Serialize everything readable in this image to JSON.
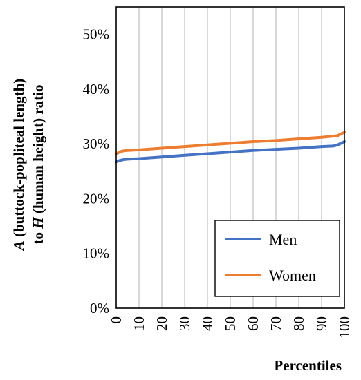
{
  "chart_data": {
    "type": "line",
    "title": "",
    "xlabel": "Percentiles",
    "ylabel_parts": [
      {
        "text": "A",
        "italic": true
      },
      {
        "text": " (buttock-popliteal length)",
        "italic": false
      },
      {
        "text": "to ",
        "italic": false
      },
      {
        "text": "H",
        "italic": true
      },
      {
        "text": " (human height) ratio",
        "italic": false
      }
    ],
    "xlim": [
      0,
      100
    ],
    "ylim": [
      0,
      0.55
    ],
    "x_ticks": [
      0,
      10,
      20,
      30,
      40,
      50,
      60,
      70,
      80,
      90,
      100
    ],
    "y_ticks": [
      0,
      0.1,
      0.2,
      0.3,
      0.4,
      0.5
    ],
    "y_tick_labels": [
      "0%",
      "10%",
      "20%",
      "30%",
      "40%",
      "50%"
    ],
    "grid": "vertical",
    "legend_position": "bottom-right",
    "x": [
      0,
      1,
      2,
      3,
      5,
      10,
      20,
      30,
      40,
      50,
      60,
      70,
      80,
      90,
      95,
      97,
      98,
      99,
      100
    ],
    "series": [
      {
        "name": "Men",
        "color": "#4472C4",
        "values": [
          0.267,
          0.269,
          0.27,
          0.271,
          0.272,
          0.273,
          0.276,
          0.279,
          0.282,
          0.285,
          0.288,
          0.29,
          0.292,
          0.295,
          0.296,
          0.298,
          0.3,
          0.302,
          0.304
        ]
      },
      {
        "name": "Women",
        "color": "#ED7D31",
        "values": [
          0.281,
          0.284,
          0.286,
          0.287,
          0.288,
          0.289,
          0.292,
          0.295,
          0.298,
          0.301,
          0.304,
          0.306,
          0.309,
          0.312,
          0.314,
          0.315,
          0.317,
          0.319,
          0.321
        ]
      }
    ]
  }
}
